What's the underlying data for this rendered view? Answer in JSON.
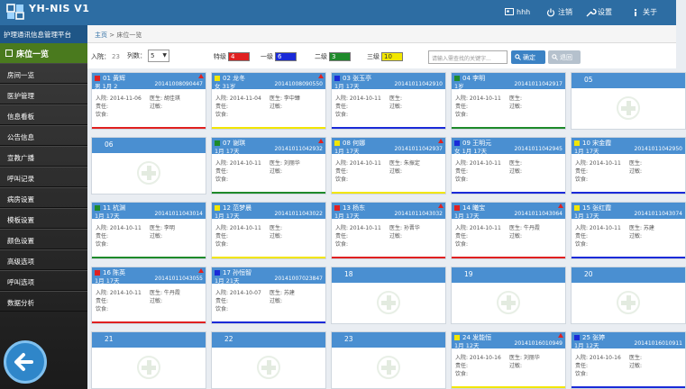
{
  "header": {
    "title": "YH-NIS V1",
    "subtitle": "护理通讯信息管理平台",
    "user": "hhh",
    "logout": "注销",
    "settings": "设置",
    "about": "关于"
  },
  "breadcrumb": {
    "home": "主页",
    "separator": ">",
    "current": "床位一览"
  },
  "sidebar": {
    "title": "床位一览",
    "items": [
      "房间一览",
      "医护管理",
      "信息看板",
      "公告信息",
      "宣教广播",
      "呼叫记录",
      "病房设置",
      "模板设置",
      "颜色设置",
      "高级选项",
      "呼叫选项",
      "数据分析"
    ]
  },
  "toolbar": {
    "admitted_label": "入院：",
    "admitted_value": "23",
    "columns_label": "列数：",
    "columns_value": "5",
    "levels": [
      {
        "label": "特级",
        "count": "4",
        "color": "#e02020"
      },
      {
        "label": "一级",
        "count": "6",
        "color": "#1a2ad8"
      },
      {
        "label": "二级",
        "count": "3",
        "color": "#1e8a2a"
      },
      {
        "label": "三级",
        "count": "10",
        "color": "#f2e600"
      }
    ],
    "search_placeholder": "请输入需查找的关键字...",
    "confirm_label": "确定",
    "back_label": "退回"
  },
  "beds": [
    {
      "num": "01",
      "name": "黄辉",
      "sex": "男",
      "age": "1月 2",
      "id": "20141008090447",
      "admit": "入院: 2014-11-06",
      "doctor": "医生: 胡佳琪",
      "nurse": "责任:",
      "allergy": "过敏:",
      "diet": "饮食:",
      "dot": "#e02020",
      "bar": "#e02020",
      "flag": true
    },
    {
      "num": "02",
      "name": "龙冬",
      "sex": "女",
      "age": "31岁",
      "id": "20141008090550",
      "admit": "入院: 2014-11-04",
      "doctor": "医生: 李中臻",
      "nurse": "责任:",
      "allergy": "过敏:",
      "diet": "饮食:",
      "dot": "#f2e600",
      "bar": "#f2e600",
      "flag": true
    },
    {
      "num": "03",
      "name": "张玉亭",
      "sex": "",
      "age": "1月 17天",
      "id": "20141011042910",
      "admit": "入院: 2014-10-11",
      "doctor": "医生:",
      "nurse": "责任:",
      "allergy": "过敏:",
      "diet": "饮食:",
      "dot": "#1a2ad8",
      "bar": "#1a2ad8",
      "flag": false
    },
    {
      "num": "04",
      "name": "李明",
      "sex": "",
      "age": "1岁",
      "id": "20141011042917",
      "admit": "入院: 2014-10-11",
      "doctor": "医生:",
      "nurse": "责任:",
      "allergy": "过敏:",
      "diet": "饮食:",
      "dot": "#1e8a2a",
      "bar": "#1e8a2a",
      "flag": false
    },
    {
      "num": "05",
      "empty": true
    },
    {
      "num": "06",
      "empty": true
    },
    {
      "num": "07",
      "name": "谢琪",
      "sex": "",
      "age": "1月 17天",
      "id": "20141011042932",
      "admit": "入院: 2014-10-11",
      "doctor": "医生: 刘丽华",
      "nurse": "责任:",
      "allergy": "过敏:",
      "diet": "饮食:",
      "dot": "#1e8a2a",
      "bar": "#1e8a2a",
      "flag": true
    },
    {
      "num": "08",
      "name": "何娜",
      "sex": "",
      "age": "1月 17天",
      "id": "20141011042937",
      "admit": "入院: 2014-10-11",
      "doctor": "医生: 朱振定",
      "nurse": "责任:",
      "allergy": "过敏:",
      "diet": "饮食:",
      "dot": "#f2e600",
      "bar": "#f2e600",
      "flag": true
    },
    {
      "num": "09",
      "name": "王明元",
      "sex": "女",
      "age": "1月 17天",
      "id": "20141011042945",
      "admit": "入院: 2014-10-11",
      "doctor": "医生:",
      "nurse": "责任:",
      "allergy": "过敏:",
      "diet": "饮食:",
      "dot": "#1a2ad8",
      "bar": "#1a2ad8",
      "flag": false
    },
    {
      "num": "10",
      "name": "宋金霞",
      "sex": "",
      "age": "1月 17天",
      "id": "20141011042950",
      "admit": "入院: 2014-10-11",
      "doctor": "医生:",
      "nurse": "责任:",
      "allergy": "过敏:",
      "diet": "饮食:",
      "dot": "#f2e600",
      "bar": "#1a2ad8",
      "flag": false
    },
    {
      "num": "11",
      "name": "杭渊",
      "sex": "",
      "age": "1月 17天",
      "id": "20141011043014",
      "admit": "入院: 2014-10-11",
      "doctor": "医生: 李明",
      "nurse": "责任:",
      "allergy": "过敏:",
      "diet": "饮食:",
      "dot": "#1e8a2a",
      "bar": "#1e8a2a",
      "flag": false
    },
    {
      "num": "12",
      "name": "范梦晨",
      "sex": "",
      "age": "1月 17天",
      "id": "20141011043022",
      "admit": "入院: 2014-10-11",
      "doctor": "医生:",
      "nurse": "责任:",
      "allergy": "过敏:",
      "diet": "饮食:",
      "dot": "#f2e600",
      "bar": "#f2e600",
      "flag": false
    },
    {
      "num": "13",
      "name": "杨东",
      "sex": "",
      "age": "1月 17天",
      "id": "20141011043032",
      "admit": "入院: 2014-10-11",
      "doctor": "医生: 孙晋华",
      "nurse": "责任:",
      "allergy": "过敏:",
      "diet": "饮食:",
      "dot": "#e02020",
      "bar": "#e02020",
      "flag": true
    },
    {
      "num": "14",
      "name": "曦宝",
      "sex": "",
      "age": "1月 17天",
      "id": "20141011043064",
      "admit": "入院: 2014-10-11",
      "doctor": "医生: 牛丹霞",
      "nurse": "责任:",
      "allergy": "过敏:",
      "diet": "饮食:",
      "dot": "#e02020",
      "bar": "#e02020",
      "flag": true
    },
    {
      "num": "15",
      "name": "张红霞",
      "sex": "",
      "age": "1月 17天",
      "id": "20141011043074",
      "admit": "入院: 2014-10-11",
      "doctor": "医生: 苏建",
      "nurse": "责任:",
      "allergy": "过敏:",
      "diet": "饮食:",
      "dot": "#f2e600",
      "bar": "#1a2ad8",
      "flag": false
    },
    {
      "num": "16",
      "name": "陈英",
      "sex": "",
      "age": "1月 17天",
      "id": "20141011043055",
      "admit": "入院: 2014-10-11",
      "doctor": "医生: 牛丹霞",
      "nurse": "责任:",
      "allergy": "过敏:",
      "diet": "饮食:",
      "dot": "#e02020",
      "bar": "#e02020",
      "flag": true
    },
    {
      "num": "17",
      "name": "孙恒智",
      "sex": "",
      "age": "1月 21天",
      "id": "20141007023847",
      "admit": "入院: 2014-10-07",
      "doctor": "医生: 苏建",
      "nurse": "责任:",
      "allergy": "过敏:",
      "diet": "饮食:",
      "dot": "#1a2ad8",
      "bar": "#1a2ad8",
      "flag": false
    },
    {
      "num": "18",
      "empty": true
    },
    {
      "num": "19",
      "empty": true
    },
    {
      "num": "20",
      "empty": true
    },
    {
      "num": "21",
      "empty": true
    },
    {
      "num": "22",
      "empty": true
    },
    {
      "num": "23",
      "empty": true
    },
    {
      "num": "24",
      "name": "发能恒",
      "sex": "",
      "age": "1月 12天",
      "id": "20141016010949",
      "admit": "入院: 2014-10-16",
      "doctor": "医生: 刘丽华",
      "nurse": "责任:",
      "allergy": "过敏:",
      "diet": "饮食:",
      "dot": "#f2e600",
      "bar": "#f2e600",
      "flag": true
    },
    {
      "num": "25",
      "name": "张婷",
      "sex": "",
      "age": "1月 12天",
      "id": "20141016010911",
      "admit": "入院: 2014-10-16",
      "doctor": "医生:",
      "nurse": "责任:",
      "allergy": "过敏:",
      "diet": "饮食:",
      "dot": "#1a2ad8",
      "bar": "#1a2ad8",
      "flag": false
    }
  ]
}
